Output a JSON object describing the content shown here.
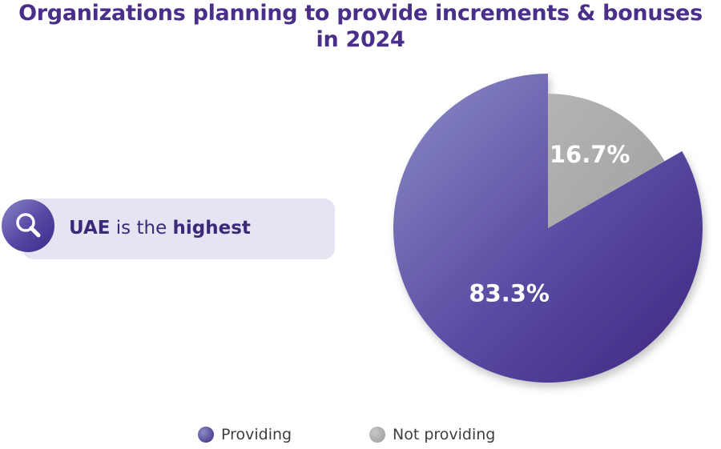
{
  "chart_data": {
    "type": "pie",
    "title": "Organizations planning to provide increments & bonuses in 2024",
    "title_lines": [
      "Organizations planning to provide increments & bonuses",
      "in 2024"
    ],
    "categories": [
      "Providing",
      "Not providing"
    ],
    "values": [
      83.3,
      16.7
    ],
    "value_labels": [
      "83.3%",
      "16.7%"
    ],
    "colors": [
      "#4a2f8a",
      "#a9a7a7"
    ],
    "legend_position": "bottom"
  },
  "callout": {
    "icon": "search-icon",
    "country": "UAE",
    "text_middle": " is the ",
    "emphasis": "highest"
  }
}
